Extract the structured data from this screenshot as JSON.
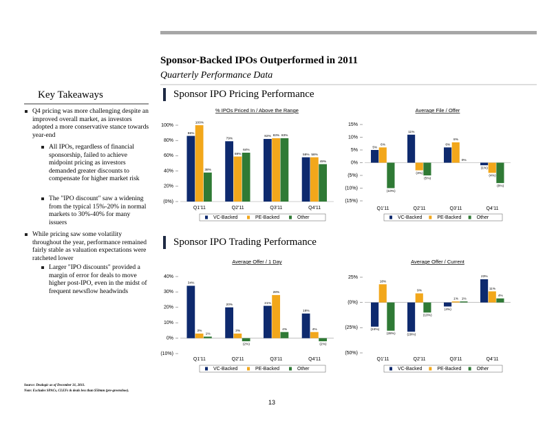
{
  "header": {
    "title": "Sponsor-Backed IPOs Outperformed in 2011",
    "subtitle": "Quarterly Performance Data"
  },
  "key_takeaways": {
    "heading": "Key Takeaways",
    "bullets": [
      {
        "text": "Q4 pricing was more challenging despite an improved overall market, as investors adopted a more conservative stance towards year-end",
        "sub": [
          "All IPOs, regardless of financial sponsorship, failed to achieve midpoint pricing as investors demanded greater discounts to compensate for higher market risk",
          "The \"IPO discount\" saw a widening from the typical 15%-20% in normal markets to 30%-40% for many issuers"
        ]
      },
      {
        "text": "While pricing saw some volatility throughout the year, performance remained fairly stable as valuation expectations were ratcheted lower",
        "sub": [
          "Larger \"IPO discounts\" provided a margin of error for deals to move higher post-IPO, even in the midst of frequent newsflow headwinds"
        ]
      }
    ]
  },
  "sections": [
    "Sponsor IPO Pricing Performance",
    "Sponsor IPO Trading Performance"
  ],
  "chart_data": [
    {
      "type": "bar",
      "title": "% IPOs Priced In / Above the Range",
      "categories": [
        "Q1'11",
        "Q2'11",
        "Q3'11",
        "Q4'11"
      ],
      "series": [
        {
          "name": "VC-Backed",
          "color": "#0e2a6e",
          "values": [
            86,
            79,
            82,
            58
          ],
          "value_labels": [
            "86%",
            "79%",
            "82%",
            "58%"
          ]
        },
        {
          "name": "PE-Backed",
          "color": "#f2a71b",
          "values": [
            100,
            59,
            83,
            58
          ],
          "value_labels": [
            "100%",
            "59%",
            "83%",
            "58%"
          ]
        },
        {
          "name": "Other",
          "color": "#2f7a35",
          "values": [
            38,
            64,
            83,
            49
          ],
          "value_labels": [
            "38%",
            "64%",
            "83%",
            "49%"
          ]
        }
      ],
      "ylim": [
        0,
        100
      ],
      "yticks": [
        {
          "value": 100,
          "label": "100%"
        },
        {
          "value": 80,
          "label": "80%"
        },
        {
          "value": 60,
          "label": "60%"
        },
        {
          "value": 40,
          "label": "40%"
        },
        {
          "value": 20,
          "label": "20%"
        },
        {
          "value": 0,
          "label": "(0%)"
        }
      ]
    },
    {
      "type": "bar",
      "title": "Average File / Offer",
      "categories": [
        "Q1'11",
        "Q2'11",
        "Q3'11",
        "Q4'11"
      ],
      "series": [
        {
          "name": "VC-Backed",
          "color": "#0e2a6e",
          "values": [
            5,
            11,
            6,
            -1
          ],
          "value_labels": [
            "5%",
            "11%",
            "6%",
            "(1%)"
          ]
        },
        {
          "name": "PE-Backed",
          "color": "#f2a71b",
          "values": [
            6,
            -3,
            8,
            -4
          ],
          "value_labels": [
            "6%",
            "(3%)",
            "8%",
            "(4%)"
          ]
        },
        {
          "name": "Other",
          "color": "#2f7a35",
          "values": [
            -10,
            -5,
            0,
            -8
          ],
          "value_labels": [
            "(10%)",
            "(5%)",
            "0%",
            "(8%)"
          ]
        }
      ],
      "ylim": [
        -15,
        15
      ],
      "yticks": [
        {
          "value": 15,
          "label": "15%"
        },
        {
          "value": 10,
          "label": "10%"
        },
        {
          "value": 5,
          "label": "5%"
        },
        {
          "value": 0,
          "label": "0%"
        },
        {
          "value": -5,
          "label": "(5%)"
        },
        {
          "value": -10,
          "label": "(10%)"
        },
        {
          "value": -15,
          "label": "(15%)"
        }
      ]
    },
    {
      "type": "bar",
      "title": "Average Offer / 1 Day",
      "categories": [
        "Q1'11",
        "Q2'11",
        "Q3'11",
        "Q4'11"
      ],
      "series": [
        {
          "name": "VC-Backed",
          "color": "#0e2a6e",
          "values": [
            34,
            20,
            21,
            16
          ],
          "value_labels": [
            "34%",
            "20%",
            "21%",
            "16%"
          ]
        },
        {
          "name": "PE-Backed",
          "color": "#f2a71b",
          "values": [
            3,
            3,
            28,
            4
          ],
          "value_labels": [
            "3%",
            "3%",
            "28%",
            "4%"
          ]
        },
        {
          "name": "Other",
          "color": "#2f7a35",
          "values": [
            1,
            -2,
            4,
            -2
          ],
          "value_labels": [
            "1%",
            "(2%)",
            "4%",
            "(2%)"
          ]
        }
      ],
      "ylim": [
        -10,
        40
      ],
      "yticks": [
        {
          "value": 40,
          "label": "40%"
        },
        {
          "value": 30,
          "label": "30%"
        },
        {
          "value": 20,
          "label": "20%"
        },
        {
          "value": 10,
          "label": "10%"
        },
        {
          "value": 0,
          "label": "0%"
        },
        {
          "value": -10,
          "label": "(10%)"
        }
      ]
    },
    {
      "type": "bar",
      "title": "Average Offer / Current",
      "categories": [
        "Q1'11",
        "Q2'11",
        "Q3'11",
        "Q4'11"
      ],
      "series": [
        {
          "name": "VC-Backed",
          "color": "#0e2a6e",
          "values": [
            -24,
            -29,
            -4,
            23
          ],
          "value_labels": [
            "(24%)",
            "(29%)",
            "(4%)",
            "23%"
          ]
        },
        {
          "name": "PE-Backed",
          "color": "#f2a71b",
          "values": [
            18,
            9,
            1,
            11
          ],
          "value_labels": [
            "18%",
            "9%",
            "1%",
            "11%"
          ]
        },
        {
          "name": "Other",
          "color": "#2f7a35",
          "values": [
            -28,
            -10,
            1,
            4
          ],
          "value_labels": [
            "(28%)",
            "(10%)",
            "1%",
            "4%"
          ]
        }
      ],
      "ylim": [
        -50,
        25
      ],
      "yticks": [
        {
          "value": 25,
          "label": "25%"
        },
        {
          "value": 0,
          "label": "(0%)"
        },
        {
          "value": -25,
          "label": "(25%)"
        },
        {
          "value": -50,
          "label": "(50%)"
        }
      ]
    }
  ],
  "footer": {
    "source": "Source: Dealogic as of December 31, 2011.",
    "note": "Note: Excludes SPACs, CLEFs & deals less than $50mm (pre-greenshoe).",
    "page": "13"
  }
}
